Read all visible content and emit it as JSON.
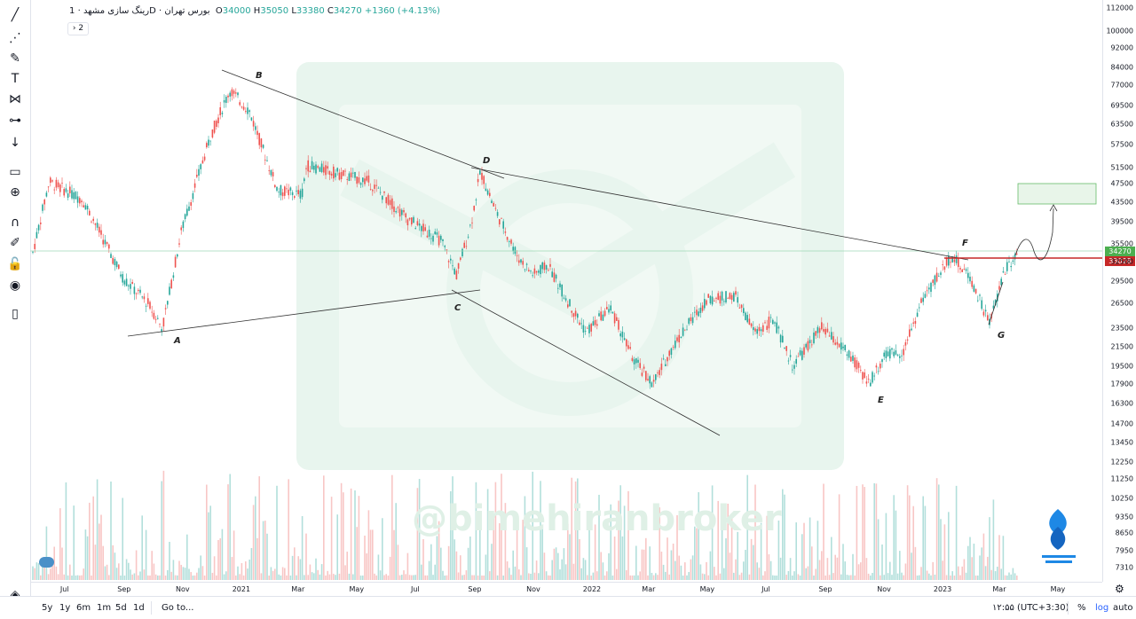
{
  "legend": {
    "symbol": "رینگ سازی مشهد",
    "sep1": "·",
    "interval": "1D",
    "sep2": "·",
    "exchange": "بورس تهران",
    "o_label": "O",
    "o_value": "34000",
    "h_label": "H",
    "h_value": "35050",
    "l_label": "L",
    "l_value": "33380",
    "c_label": "C",
    "c_value": "34270",
    "change": "+1360 (+4.13%)",
    "expand_label": "2"
  },
  "watermark": "@bimehiranbroker",
  "price_labels": {
    "last": "34270",
    "level": "33028"
  },
  "colors": {
    "up": "#26a69a",
    "down": "#ef5350",
    "level": "#c62828",
    "last": "#4caf50",
    "target_box": "#e8f5e9"
  },
  "bottom_bar": {
    "ranges": [
      "5y",
      "1y",
      "6m",
      "1m",
      "5d",
      "1d"
    ],
    "goto": "Go to...",
    "time": "۱۲:۵۵ (UTC+3:30)",
    "percent": "%",
    "log": "log",
    "auto": "auto"
  },
  "toolbar_icons": [
    "trend-line-icon",
    "fib-icon",
    "brush-icon",
    "text-icon",
    "pattern-icon",
    "measure-icon",
    "arrow-down-icon",
    "ruler-icon",
    "zoom-icon",
    "magnet-icon",
    "lock-drawing-icon",
    "unlock-icon",
    "eye-icon",
    "trash-icon",
    "layers-icon"
  ],
  "chart_data": {
    "type": "candlestick",
    "scale": "log",
    "y_ticks": [
      112000,
      100000,
      92000,
      84000,
      77000,
      69500,
      63500,
      57500,
      51500,
      47500,
      43500,
      39500,
      35500,
      32500,
      29500,
      26500,
      23500,
      21500,
      19500,
      17900,
      16300,
      14700,
      13450,
      12250,
      11250,
      10250,
      9350,
      8650,
      7950,
      7310
    ],
    "x_ticks": [
      "Jul",
      "Sep",
      "Nov",
      "2021",
      "Mar",
      "May",
      "Jul",
      "Sep",
      "Nov",
      "2022",
      "Mar",
      "May",
      "Jul",
      "Sep",
      "Nov",
      "2023",
      "Mar",
      "May"
    ],
    "pattern_points": [
      {
        "label": "A",
        "value": 23500
      },
      {
        "label": "B",
        "value": 77000
      },
      {
        "label": "C",
        "value": 30500
      },
      {
        "label": "D",
        "value": 50500
      },
      {
        "label": "E",
        "value": 17900
      },
      {
        "label": "F",
        "value": 34000
      },
      {
        "label": "G",
        "value": 24000
      }
    ],
    "anchors": [
      {
        "x": "2020-05-29",
        "y": 34000
      },
      {
        "x": "2020-06-15",
        "y": 48000
      },
      {
        "x": "2020-07-20",
        "y": 44000
      },
      {
        "x": "2020-08-31",
        "y": 30000
      },
      {
        "x": "2020-09-26",
        "y": 26500
      },
      {
        "x": "2020-10-11",
        "y": 23500
      },
      {
        "x": "2020-10-31",
        "y": 38000
      },
      {
        "x": "2020-11-30",
        "y": 60000
      },
      {
        "x": "2020-12-20",
        "y": 75000
      },
      {
        "x": "2021-01-09",
        "y": 68000
      },
      {
        "x": "2021-02-08",
        "y": 46000
      },
      {
        "x": "2021-03-05",
        "y": 45000
      },
      {
        "x": "2021-03-10",
        "y": 52000
      },
      {
        "x": "2021-05-14",
        "y": 48000
      },
      {
        "x": "2021-06-23",
        "y": 40000
      },
      {
        "x": "2021-07-28",
        "y": 36000
      },
      {
        "x": "2021-08-13",
        "y": 30500
      },
      {
        "x": "2021-08-28",
        "y": 39000
      },
      {
        "x": "2021-09-07",
        "y": 50500
      },
      {
        "x": "2021-09-22",
        "y": 42000
      },
      {
        "x": "2021-10-17",
        "y": 33000
      },
      {
        "x": "2021-11-01",
        "y": 30500
      },
      {
        "x": "2021-11-16",
        "y": 32000
      },
      {
        "x": "2021-12-06",
        "y": 27000
      },
      {
        "x": "2021-12-26",
        "y": 23000
      },
      {
        "x": "2022-01-20",
        "y": 26000
      },
      {
        "x": "2022-02-14",
        "y": 20000
      },
      {
        "x": "2022-03-06",
        "y": 17900
      },
      {
        "x": "2022-03-26",
        "y": 21500
      },
      {
        "x": "2022-04-30",
        "y": 27000
      },
      {
        "x": "2022-05-30",
        "y": 27500
      },
      {
        "x": "2022-06-19",
        "y": 23000
      },
      {
        "x": "2022-07-09",
        "y": 24500
      },
      {
        "x": "2022-07-29",
        "y": 19500
      },
      {
        "x": "2022-08-28",
        "y": 23500
      },
      {
        "x": "2022-09-22",
        "y": 21000
      },
      {
        "x": "2022-10-17",
        "y": 18000
      },
      {
        "x": "2022-11-01",
        "y": 20500
      },
      {
        "x": "2022-11-21",
        "y": 21000
      },
      {
        "x": "2022-12-11",
        "y": 27000
      },
      {
        "x": "2023-01-10",
        "y": 33500
      },
      {
        "x": "2023-01-30",
        "y": 30000
      },
      {
        "x": "2023-02-19",
        "y": 24000
      },
      {
        "x": "2023-03-06",
        "y": 31000
      },
      {
        "x": "2023-03-21",
        "y": 34270
      }
    ]
  }
}
